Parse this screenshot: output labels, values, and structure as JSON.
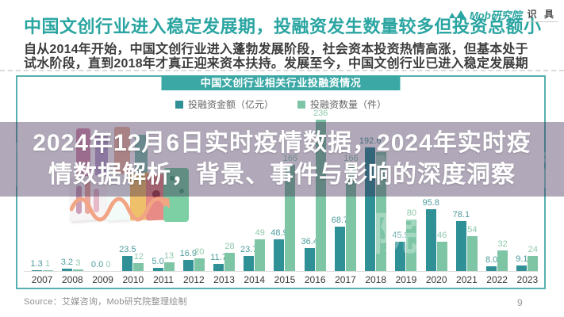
{
  "page": {
    "page_number": "9"
  },
  "header": {
    "title": "中国文创行业进入稳定发展期，投融资发生数量较多但投资总额小",
    "subtitle_line1": "自从2014年开始，中国文创行业进入蓬勃发展阶段，社会资本投资热情高涨，但基本处于",
    "subtitle_line2": "试水阶段，直到2018年才真正迎来资本扶持。发展至今，中国文创行业已进入稳定发展期",
    "logo_brand": "Mob研究院",
    "logo_badge": "识 具"
  },
  "overlay": {
    "line1": "2024年12月6日实时疫情数据，2024年实时疫",
    "line2": "情数据解析，背景、事件与影响的深度洞察",
    "watermark": "Mob研究院",
    "watermark_left": "M"
  },
  "chart_data": {
    "type": "bar",
    "title": "中国文创行业相关行业投融资情况",
    "categories": [
      "2007",
      "2008",
      "2009",
      "2010",
      "2011",
      "2012",
      "2013",
      "2014",
      "2015",
      "2016",
      "2017",
      "2018",
      "2019",
      "2020",
      "2021",
      "2022",
      "2023"
    ],
    "series": [
      {
        "name": "投融资金额（亿元）",
        "color": "#2f9096",
        "label_color": "#4f9b9d",
        "values": [
          1.3,
          3.2,
          0.0,
          23.5,
          5.0,
          16.9,
          11.7,
          23.7,
          48.9,
          36.4,
          68.7,
          192.6,
          45.9,
          95.8,
          78.1,
          8.0,
          9.1
        ],
        "labels": [
          "1.3",
          "3.2",
          "0.0",
          "23.5",
          "5.0",
          "16.9",
          "11.7",
          "23.7",
          "48.9",
          "36.4",
          "68.7",
          "192.6",
          "45.9",
          "95.8",
          "78.1",
          "8.0",
          "9.1"
        ]
      },
      {
        "name": "投融资数量（件）",
        "color": "#7dc5a5",
        "label_color": "#90c9ab",
        "values": [
          1,
          3,
          0,
          12,
          13,
          20,
          28,
          49,
          165,
          236,
          166,
          185,
          80,
          46,
          54,
          32,
          24
        ],
        "labels": [
          "1",
          "3",
          "0",
          "12",
          "13",
          "20",
          "28",
          "49",
          "165",
          "236",
          "166",
          "",
          "80",
          "46",
          "54",
          "32",
          "24"
        ]
      }
    ],
    "ylim": [
      0,
      250
    ],
    "legend_position": "top",
    "grid": false
  },
  "footer": {
    "source": "Source：艾媒咨询，Mob研究院整理绘制"
  }
}
